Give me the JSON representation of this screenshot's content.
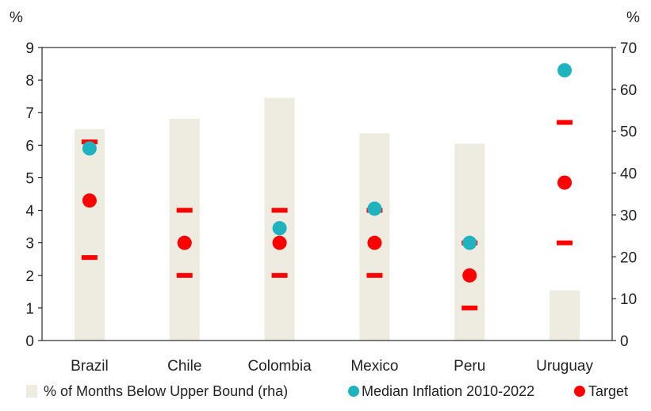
{
  "chart_data": {
    "type": "bar+scatter",
    "categories": [
      "Brazil",
      "Chile",
      "Colombia",
      "Mexico",
      "Peru",
      "Uruguay"
    ],
    "left_axis": {
      "unit": "%",
      "ylim": [
        0,
        9
      ],
      "ticks": [
        "0",
        "1",
        "2",
        "3",
        "4",
        "5",
        "6",
        "7",
        "8",
        "9"
      ]
    },
    "right_axis": {
      "unit": "%",
      "ylim": [
        0,
        70
      ],
      "ticks": [
        "0",
        "10",
        "20",
        "30",
        "40",
        "50",
        "60",
        "70"
      ]
    },
    "grid": false,
    "legend_position": "bottom",
    "series": [
      {
        "name": "% of Months Below Upper Bound (rha)",
        "kind": "bar",
        "axis": "right",
        "color": "#eeebe0",
        "values": [
          50.5,
          53,
          58,
          49.5,
          47,
          12
        ]
      },
      {
        "name": "Median Inflation 2010-2022",
        "kind": "scatter",
        "axis": "left",
        "color": "#1fb3c0",
        "values": [
          5.9,
          3.0,
          3.45,
          4.05,
          3.0,
          8.3
        ]
      },
      {
        "name": "Target",
        "kind": "scatter",
        "axis": "left",
        "color": "#ff0000",
        "values": [
          4.3,
          3.0,
          3.0,
          3.0,
          2.0,
          4.85
        ]
      }
    ],
    "target_bands": {
      "color": "#ff0000",
      "upper": [
        6.1,
        4.0,
        4.0,
        4.0,
        3.0,
        6.7
      ],
      "lower": [
        2.55,
        2.0,
        2.0,
        2.0,
        1.0,
        3.0
      ]
    }
  }
}
